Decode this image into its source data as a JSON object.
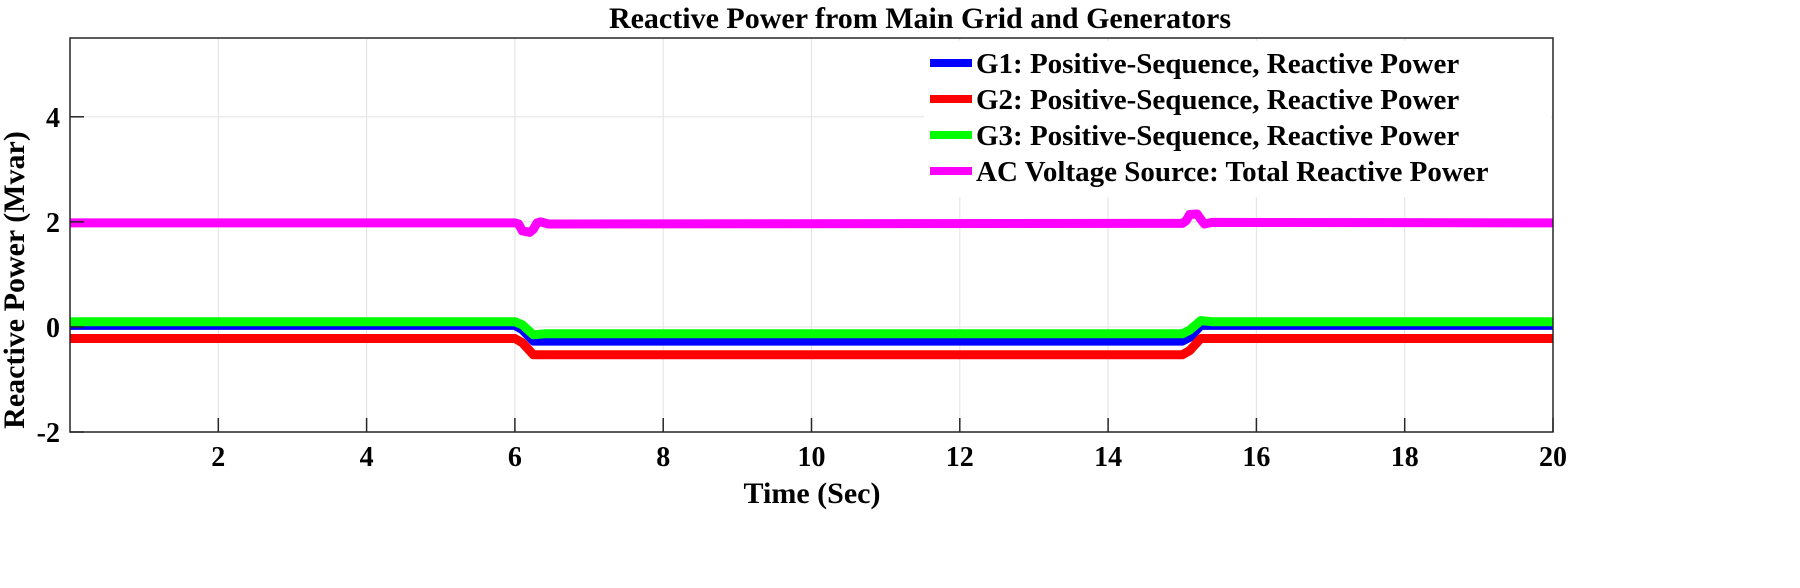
{
  "chart_data": {
    "type": "line",
    "title": "Reactive Power from Main Grid and Generators",
    "xlabel": "Time (Sec)",
    "ylabel": "Reactive Power (Mvar)",
    "xlim": [
      0,
      20
    ],
    "ylim": [
      -2,
      5.5
    ],
    "xticks": [
      2,
      4,
      6,
      8,
      10,
      12,
      14,
      16,
      18,
      20
    ],
    "yticks": [
      -2,
      0,
      2,
      4
    ],
    "grid": true,
    "legend_position": "top-right",
    "series": [
      {
        "name": "G1: Positive-Sequence, Reactive Power",
        "color": "#0000ff",
        "points": [
          [
            0,
            0.03
          ],
          [
            6.0,
            0.03
          ],
          [
            6.1,
            -0.05
          ],
          [
            6.25,
            -0.27
          ],
          [
            6.4,
            -0.27
          ],
          [
            15.0,
            -0.27
          ],
          [
            15.1,
            -0.2
          ],
          [
            15.25,
            0.03
          ],
          [
            20,
            0.03
          ]
        ]
      },
      {
        "name": "G2: Positive-Sequence, Reactive Power",
        "color": "#ff0000",
        "points": [
          [
            0,
            -0.22
          ],
          [
            6.0,
            -0.22
          ],
          [
            6.1,
            -0.3
          ],
          [
            6.25,
            -0.53
          ],
          [
            6.4,
            -0.53
          ],
          [
            15.0,
            -0.53
          ],
          [
            15.1,
            -0.45
          ],
          [
            15.25,
            -0.22
          ],
          [
            20,
            -0.22
          ]
        ]
      },
      {
        "name": "G3: Positive-Sequence, Reactive Power",
        "color": "#00ff00",
        "points": [
          [
            0,
            0.1
          ],
          [
            6.0,
            0.1
          ],
          [
            6.1,
            0.04
          ],
          [
            6.25,
            -0.15
          ],
          [
            6.4,
            -0.13
          ],
          [
            15.0,
            -0.13
          ],
          [
            15.1,
            -0.06
          ],
          [
            15.25,
            0.12
          ],
          [
            15.4,
            0.1
          ],
          [
            20,
            0.1
          ]
        ]
      },
      {
        "name": "AC Voltage Source: Total Reactive Power",
        "color": "#ff00ff",
        "points": [
          [
            0,
            1.98
          ],
          [
            6.0,
            1.98
          ],
          [
            6.05,
            1.96
          ],
          [
            6.1,
            1.83
          ],
          [
            6.2,
            1.8
          ],
          [
            6.25,
            1.86
          ],
          [
            6.3,
            1.98
          ],
          [
            6.35,
            2.0
          ],
          [
            6.45,
            1.96
          ],
          [
            15.0,
            1.97
          ],
          [
            15.05,
            2.02
          ],
          [
            15.1,
            2.14
          ],
          [
            15.2,
            2.15
          ],
          [
            15.25,
            2.05
          ],
          [
            15.3,
            1.96
          ],
          [
            15.4,
            1.99
          ],
          [
            20,
            1.98
          ]
        ]
      }
    ]
  }
}
